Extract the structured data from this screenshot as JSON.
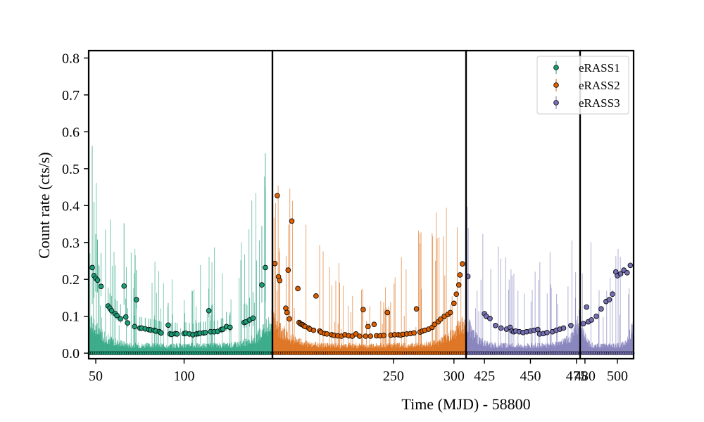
{
  "chart_data": {
    "type": "scatter",
    "title": "",
    "xlabel": "Time (MJD) - 58800",
    "ylabel": "Count rate (cts/s)",
    "ylim": [
      -0.015,
      0.82
    ],
    "y_ticks": [
      0.0,
      0.1,
      0.2,
      0.3,
      0.4,
      0.5,
      0.6,
      0.7,
      0.8
    ],
    "y_tick_labels": [
      "0.0",
      "0.1",
      "0.2",
      "0.3",
      "0.4",
      "0.5",
      "0.6",
      "0.7",
      "0.8"
    ],
    "legend_placement": "top-right",
    "grid": false,
    "panels": [
      {
        "xlim": [
          46,
          150
        ],
        "x_ticks": [
          50,
          100
        ],
        "x_tick_labels": [
          "50",
          "100"
        ],
        "series_index": 0
      },
      {
        "xlim": [
          150,
          310
        ],
        "x_ticks": [
          250,
          300
        ],
        "x_tick_labels": [
          "250",
          "300"
        ],
        "series_index": 1
      },
      {
        "xlim": [
          415,
          477
        ],
        "x_ticks": [
          425,
          450,
          475
        ],
        "x_tick_labels": [
          "425",
          "450",
          "475"
        ],
        "series_index": 2
      },
      {
        "xlim": [
          477,
          510
        ],
        "x_ticks": [
          480,
          500
        ],
        "x_tick_labels": [
          "480",
          "500"
        ],
        "series_index": 2
      }
    ],
    "series": [
      {
        "name": "eRASS1",
        "color": "#1b9e77",
        "x": [
          48,
          49,
          50,
          51,
          53,
          57,
          58,
          59,
          61,
          62,
          64,
          66,
          67,
          68,
          72,
          73,
          75,
          76,
          78,
          80,
          81,
          83,
          84,
          86,
          87,
          91,
          92,
          93,
          95,
          96,
          100,
          101,
          103,
          105,
          107,
          108,
          109,
          111,
          112,
          114,
          115,
          117,
          119,
          121,
          122,
          124,
          126,
          134,
          135,
          137,
          139,
          144,
          146
        ],
        "y": [
          0.232,
          0.21,
          0.203,
          0.198,
          0.181,
          0.128,
          0.122,
          0.115,
          0.107,
          0.102,
          0.093,
          0.182,
          0.098,
          0.082,
          0.072,
          0.145,
          0.068,
          0.068,
          0.066,
          0.064,
          0.063,
          0.062,
          0.06,
          0.058,
          0.055,
          0.076,
          0.052,
          0.051,
          0.053,
          0.052,
          0.053,
          0.054,
          0.052,
          0.05,
          0.052,
          0.053,
          0.054,
          0.055,
          0.056,
          0.115,
          0.058,
          0.058,
          0.059,
          0.064,
          0.065,
          0.072,
          0.07,
          0.083,
          0.085,
          0.09,
          0.095,
          0.185,
          0.232
        ],
        "y_err": [
          0.33,
          0.2,
          0.12,
          0.11,
          0.09,
          0.05,
          0.04,
          0.04,
          0.04,
          0.04,
          0.04,
          0.17,
          0.05,
          0.04,
          0.03,
          0.08,
          0.03,
          0.03,
          0.03,
          0.03,
          0.03,
          0.03,
          0.03,
          0.03,
          0.03,
          0.06,
          0.03,
          0.03,
          0.03,
          0.03,
          0.03,
          0.03,
          0.03,
          0.03,
          0.03,
          0.03,
          0.03,
          0.03,
          0.03,
          0.06,
          0.03,
          0.03,
          0.03,
          0.03,
          0.03,
          0.04,
          0.04,
          0.05,
          0.05,
          0.06,
          0.07,
          0.16,
          0.31
        ]
      },
      {
        "name": "eRASS2",
        "color": "#d95f02",
        "x": [
          152,
          154,
          155,
          156,
          161,
          162,
          163,
          164,
          166,
          171,
          172,
          173,
          174,
          175,
          176,
          177,
          180,
          181,
          184,
          186,
          189,
          190,
          193,
          195,
          199,
          201,
          204,
          207,
          210,
          213,
          216,
          219,
          222,
          225,
          227,
          229,
          231,
          234,
          236,
          239,
          242,
          245,
          248,
          251,
          254,
          256,
          258,
          261,
          264,
          267,
          269,
          272,
          274,
          276,
          279,
          282,
          284,
          287,
          289,
          292,
          295,
          297,
          300,
          302,
          304,
          305,
          307
        ],
        "y": [
          0.243,
          0.427,
          0.207,
          0.197,
          0.122,
          0.11,
          0.225,
          0.093,
          0.358,
          0.175,
          0.083,
          0.08,
          0.078,
          0.077,
          0.074,
          0.072,
          0.068,
          0.065,
          0.062,
          0.155,
          0.06,
          0.057,
          0.053,
          0.052,
          0.05,
          0.048,
          0.047,
          0.046,
          0.05,
          0.047,
          0.046,
          0.052,
          0.046,
          0.118,
          0.046,
          0.072,
          0.046,
          0.078,
          0.047,
          0.047,
          0.048,
          0.11,
          0.049,
          0.05,
          0.05,
          0.049,
          0.051,
          0.052,
          0.053,
          0.055,
          0.12,
          0.057,
          0.06,
          0.062,
          0.065,
          0.07,
          0.078,
          0.085,
          0.092,
          0.1,
          0.105,
          0.11,
          0.135,
          0.16,
          0.185,
          0.212,
          0.242
        ]
      },
      {
        "name": "eRASS3",
        "color": "#7570b3",
        "x": [
          416,
          425,
          426,
          428,
          431,
          434,
          437,
          439,
          440,
          441,
          442,
          444,
          446,
          448,
          450,
          452,
          454,
          455,
          457,
          459,
          462,
          464,
          466,
          468,
          472,
          479,
          481,
          482,
          484,
          487,
          490,
          493,
          495,
          497,
          499,
          500,
          502,
          504,
          506,
          508
        ],
        "y": [
          0.208,
          0.107,
          0.1,
          0.094,
          0.075,
          0.068,
          0.065,
          0.07,
          0.06,
          0.058,
          0.06,
          0.058,
          0.056,
          0.058,
          0.06,
          0.062,
          0.064,
          0.052,
          0.053,
          0.056,
          0.058,
          0.062,
          0.065,
          0.068,
          0.075,
          0.08,
          0.125,
          0.085,
          0.09,
          0.1,
          0.12,
          0.14,
          0.145,
          0.16,
          0.22,
          0.21,
          0.215,
          0.225,
          0.218,
          0.238
        ]
      }
    ]
  }
}
